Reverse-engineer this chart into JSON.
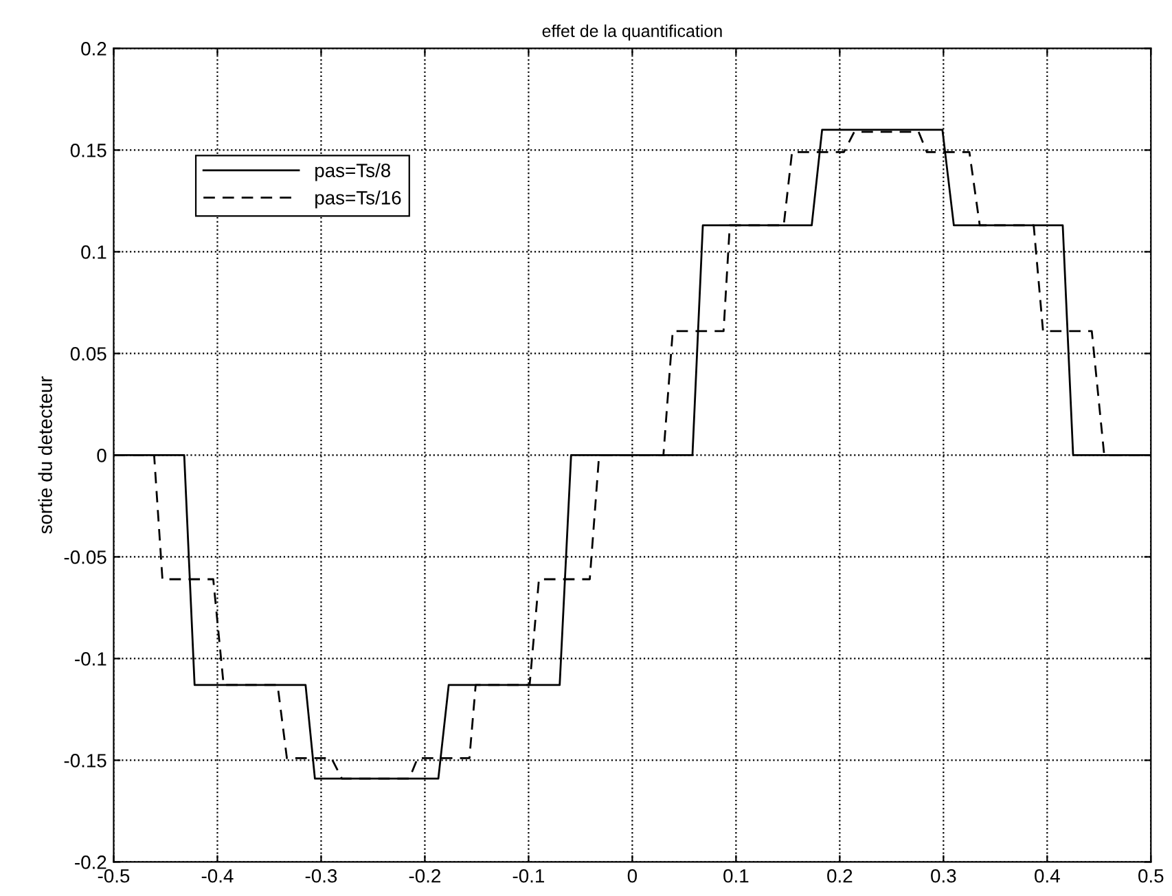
{
  "chart_data": {
    "type": "line",
    "title": "effet de la quantification",
    "ylabel": "sortie du detecteur",
    "xlim": [
      -0.5,
      0.5
    ],
    "ylim": [
      -0.2,
      0.2
    ],
    "xticks": [
      -0.5,
      -0.4,
      -0.3,
      -0.2,
      -0.1,
      0,
      0.1,
      0.2,
      0.3,
      0.4,
      0.5
    ],
    "yticks": [
      -0.2,
      -0.15,
      -0.1,
      -0.05,
      0,
      0.05,
      0.1,
      0.15,
      0.2
    ],
    "grid": true,
    "legend": "top left",
    "series": [
      {
        "name": "pas=Ts/8",
        "color": "#000000",
        "line_style": "solid",
        "x": [
          -0.5,
          -0.432,
          -0.422,
          -0.315,
          -0.306,
          -0.187,
          -0.177,
          -0.07,
          -0.059,
          0.058,
          0.068,
          0.173,
          0.183,
          0.299,
          0.31,
          0.415,
          0.425,
          0.5
        ],
        "values": [
          0,
          0,
          -0.113,
          -0.113,
          -0.159,
          -0.159,
          -0.113,
          -0.113,
          0,
          0,
          0.113,
          0.113,
          0.16,
          0.16,
          0.113,
          0.113,
          0,
          0
        ]
      },
      {
        "name": "pas=Ts/16",
        "color": "#000000",
        "line_style": "dashed",
        "x": [
          -0.5,
          -0.461,
          -0.453,
          -0.404,
          -0.394,
          -0.342,
          -0.333,
          -0.29,
          -0.28,
          -0.215,
          -0.207,
          -0.157,
          -0.151,
          -0.099,
          -0.09,
          -0.041,
          -0.032,
          0.03,
          0.039,
          0.088,
          0.094,
          0.146,
          0.154,
          0.204,
          0.214,
          0.276,
          0.284,
          0.325,
          0.335,
          0.387,
          0.396,
          0.443,
          0.455,
          0.5
        ],
        "values": [
          0,
          0,
          -0.061,
          -0.061,
          -0.113,
          -0.113,
          -0.149,
          -0.149,
          -0.159,
          -0.159,
          -0.149,
          -0.149,
          -0.113,
          -0.113,
          -0.061,
          -0.061,
          0,
          0,
          0.061,
          0.061,
          0.113,
          0.113,
          0.149,
          0.149,
          0.159,
          0.159,
          0.149,
          0.149,
          0.113,
          0.113,
          0.061,
          0.061,
          0,
          0
        ]
      }
    ]
  }
}
